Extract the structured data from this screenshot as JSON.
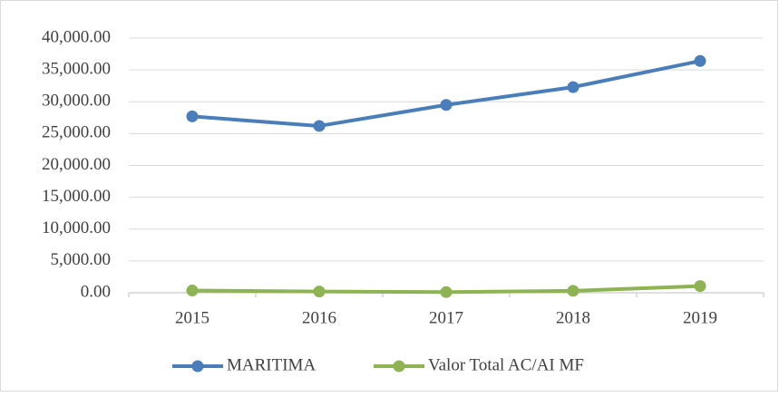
{
  "chart_data": {
    "type": "line",
    "categories": [
      "2015",
      "2016",
      "2017",
      "2018",
      "2019"
    ],
    "series": [
      {
        "name": "MARITIMA",
        "color": "#4a7ebb",
        "values": [
          27700,
          26200,
          29500,
          32300,
          36400
        ]
      },
      {
        "name": "Valor Total AC/AI MF",
        "color": "#8db353",
        "values": [
          350,
          200,
          100,
          300,
          1050
        ]
      }
    ],
    "ylim": [
      0,
      40000
    ],
    "yticks": [
      {
        "value": 0,
        "label": "0.00"
      },
      {
        "value": 5000,
        "label": "5,000.00"
      },
      {
        "value": 10000,
        "label": "10,000.00"
      },
      {
        "value": 15000,
        "label": "15,000.00"
      },
      {
        "value": 20000,
        "label": "20,000.00"
      },
      {
        "value": 25000,
        "label": "25,000.00"
      },
      {
        "value": 30000,
        "label": "30,000.00"
      },
      {
        "value": 35000,
        "label": "35,000.00"
      },
      {
        "value": 40000,
        "label": "40,000.00"
      }
    ],
    "grid": true,
    "legend": "bottom"
  }
}
